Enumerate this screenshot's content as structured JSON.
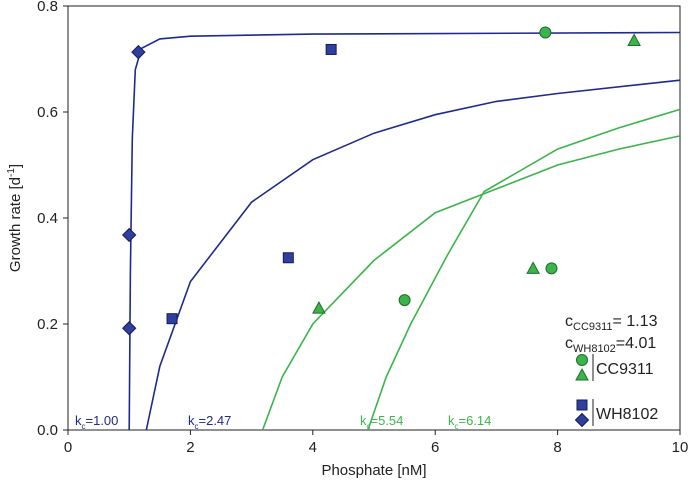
{
  "chart_data": {
    "type": "scatter",
    "x_label": "Phosphate [nM]",
    "y_label": {
      "main": "Growth rate [d",
      "sup": "-1",
      "end": "]"
    },
    "xlim": [
      0,
      10
    ],
    "xticks": [
      0,
      2,
      4,
      6,
      8,
      10
    ],
    "ylim": [
      0,
      0.8
    ],
    "yticks": [
      {
        "value": 0,
        "label": "0.0"
      },
      0.2,
      0.4,
      0.6,
      0.8
    ],
    "series": [
      {
        "name": "CC9311",
        "color": "#3cb44b",
        "edge": "#1d6e28",
        "markers": [
          "circle",
          "circle",
          "circle",
          "triangle",
          "triangle",
          "triangle"
        ],
        "x": [
          7.8,
          5.5,
          7.9,
          9.25,
          4.1,
          7.6
        ],
        "values": [
          0.75,
          0.245,
          0.305,
          0.735,
          0.23,
          0.305
        ]
      },
      {
        "name": "WH8102",
        "color": "#2e3f9e",
        "edge": "#141c55",
        "markers": [
          "square",
          "square",
          "square",
          "diamond",
          "diamond",
          "diamond"
        ],
        "x": [
          4.3,
          3.6,
          1.7,
          1.15,
          1.0,
          1.0
        ],
        "values": [
          0.718,
          0.325,
          0.21,
          0.713,
          0.368,
          0.192
        ]
      }
    ],
    "curves": [
      {
        "color": "#1f2a8a",
        "label": "k",
        "label_sub": "c",
        "label_value": "=1.00",
        "x": [
          1.0,
          1.02,
          1.05,
          1.1,
          1.2,
          1.5,
          2,
          4,
          10
        ],
        "values": [
          0,
          0.3,
          0.55,
          0.68,
          0.72,
          0.738,
          0.743,
          0.747,
          0.75
        ]
      },
      {
        "color": "#1f2a8a",
        "label": "k",
        "label_sub": "c",
        "label_value": "=2.47",
        "x": [
          1.28,
          1.5,
          2,
          3,
          4,
          5,
          6,
          7,
          8,
          10
        ],
        "values": [
          0,
          0.12,
          0.28,
          0.43,
          0.51,
          0.56,
          0.595,
          0.62,
          0.635,
          0.66
        ]
      },
      {
        "color": "#3cb44b",
        "label": "k",
        "label_sub": "c",
        "label_value": "=5.54",
        "x": [
          3.18,
          3.5,
          4,
          5,
          6,
          7,
          8,
          9,
          10
        ],
        "values": [
          0,
          0.1,
          0.2,
          0.32,
          0.41,
          0.455,
          0.5,
          0.53,
          0.555
        ]
      },
      {
        "color": "#3cb44b",
        "label": "k",
        "label_sub": "c",
        "label_value": "=6.14",
        "x": [
          4.9,
          5.2,
          5.6,
          6.2,
          6.8,
          8,
          9,
          10
        ],
        "values": [
          0,
          0.1,
          0.2,
          0.33,
          0.45,
          0.53,
          0.57,
          0.605
        ]
      }
    ],
    "annotations": [
      {
        "main": "c",
        "sub": "CC9311",
        "rest": "= 1.13"
      },
      {
        "main": "c",
        "sub": "WH8102",
        "rest": "=4.01"
      }
    ]
  }
}
